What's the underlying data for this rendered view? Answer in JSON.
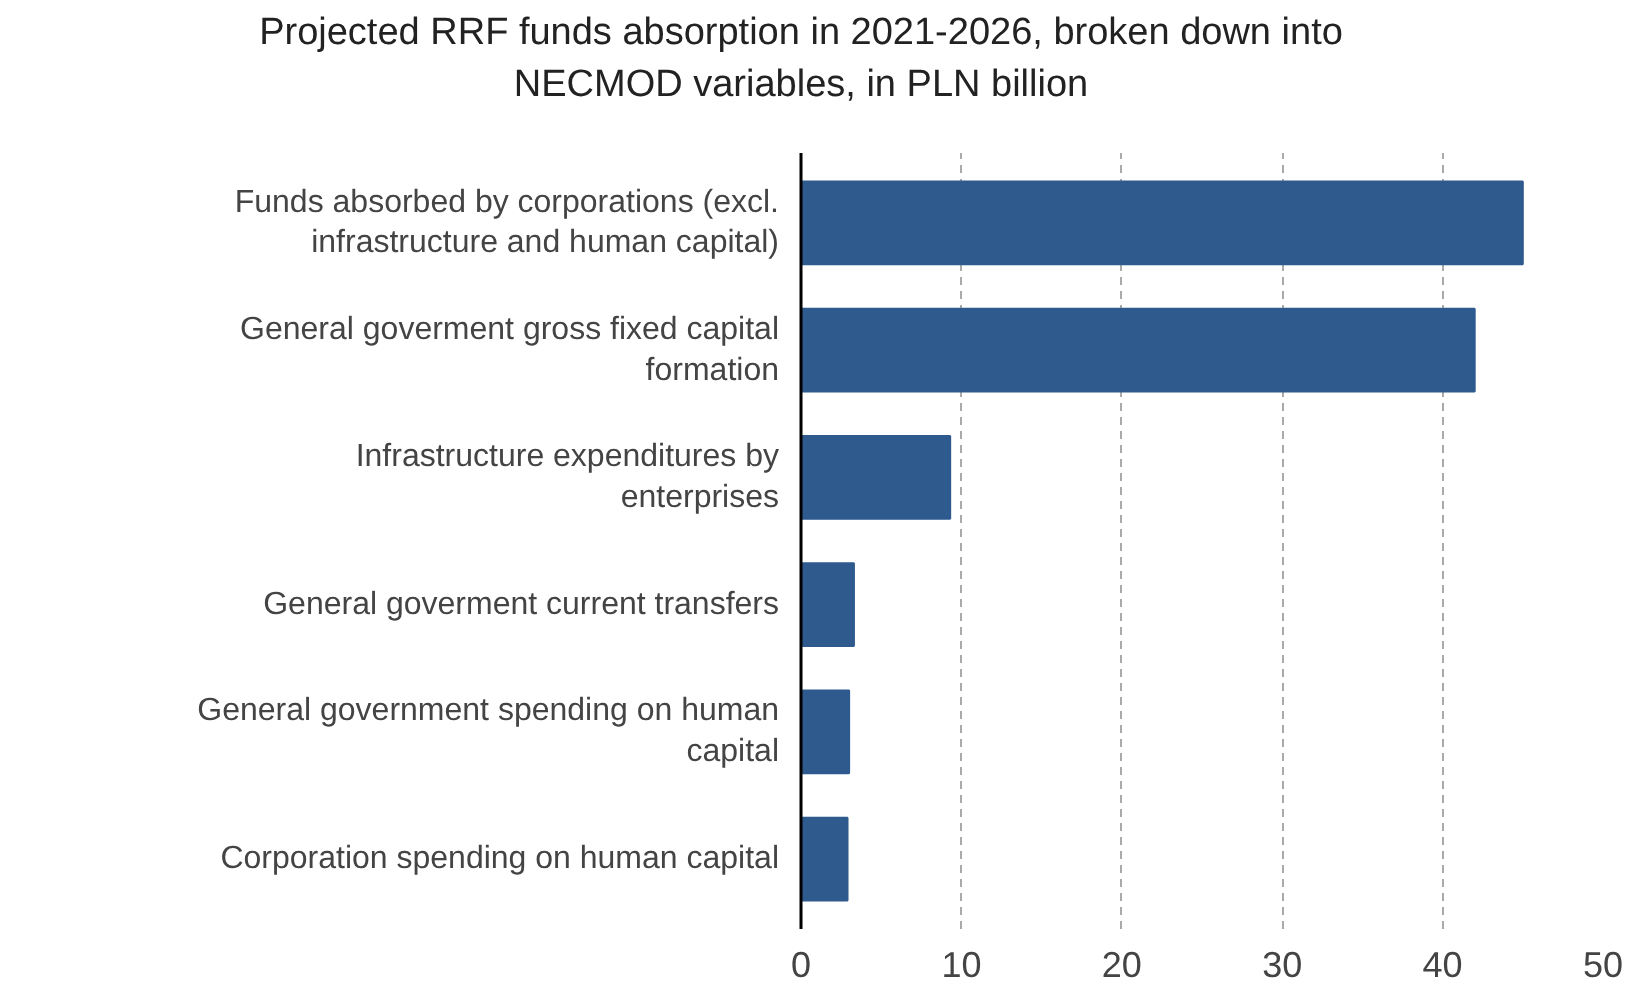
{
  "chart_data": {
    "type": "bar",
    "orientation": "horizontal",
    "title": "Projected RRF funds absorption in 2021-2026, broken down into\nNECMOD variables, in PLN billion",
    "categories": [
      "Funds absorbed by corporations (excl. infrastructure and human capital)",
      "General goverment gross fixed capital formation",
      "Infrastructure expenditures by enterprises",
      "General goverment current transfers",
      "General government spending on human capital",
      "Corporation spending on human capital"
    ],
    "values": [
      45.0,
      42.0,
      9.3,
      3.3,
      3.0,
      2.9
    ],
    "color": "#2e5a8e",
    "xlim": [
      0,
      50
    ],
    "xticks": [
      0,
      10,
      20,
      30,
      40,
      50
    ],
    "grid": "x"
  }
}
